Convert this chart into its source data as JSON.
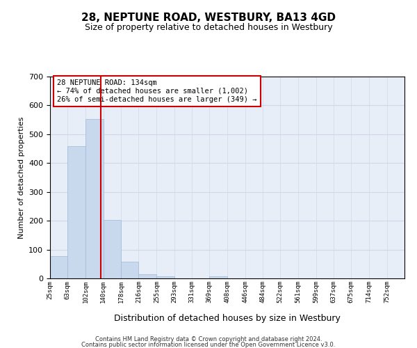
{
  "title": "28, NEPTUNE ROAD, WESTBURY, BA13 4GD",
  "subtitle": "Size of property relative to detached houses in Westbury",
  "xlabel": "Distribution of detached houses by size in Westbury",
  "ylabel": "Number of detached properties",
  "footer_line1": "Contains HM Land Registry data © Crown copyright and database right 2024.",
  "footer_line2": "Contains public sector information licensed under the Open Government Licence v3.0.",
  "annotation_line1": "28 NEPTUNE ROAD: 134sqm",
  "annotation_line2": "← 74% of detached houses are smaller (1,002)",
  "annotation_line3": "26% of semi-detached houses are larger (349) →",
  "bar_edges": [
    25,
    63,
    102,
    140,
    178,
    216,
    255,
    293,
    331,
    369,
    408,
    446,
    484,
    522,
    561,
    599,
    637,
    675,
    714,
    752,
    790
  ],
  "bar_values": [
    78,
    458,
    553,
    202,
    57,
    15,
    8,
    0,
    0,
    8,
    0,
    0,
    0,
    0,
    0,
    0,
    0,
    0,
    0,
    0
  ],
  "red_line_x": 134,
  "bar_color": "#c9d9ed",
  "bar_edge_color": "#a0b8d8",
  "red_line_color": "#cc0000",
  "grid_color": "#d0d8e8",
  "bg_color": "#e8eef8",
  "annotation_box_color": "#ffffff",
  "annotation_box_edge": "#cc0000",
  "ylim": [
    0,
    700
  ],
  "yticks": [
    0,
    100,
    200,
    300,
    400,
    500,
    600,
    700
  ]
}
